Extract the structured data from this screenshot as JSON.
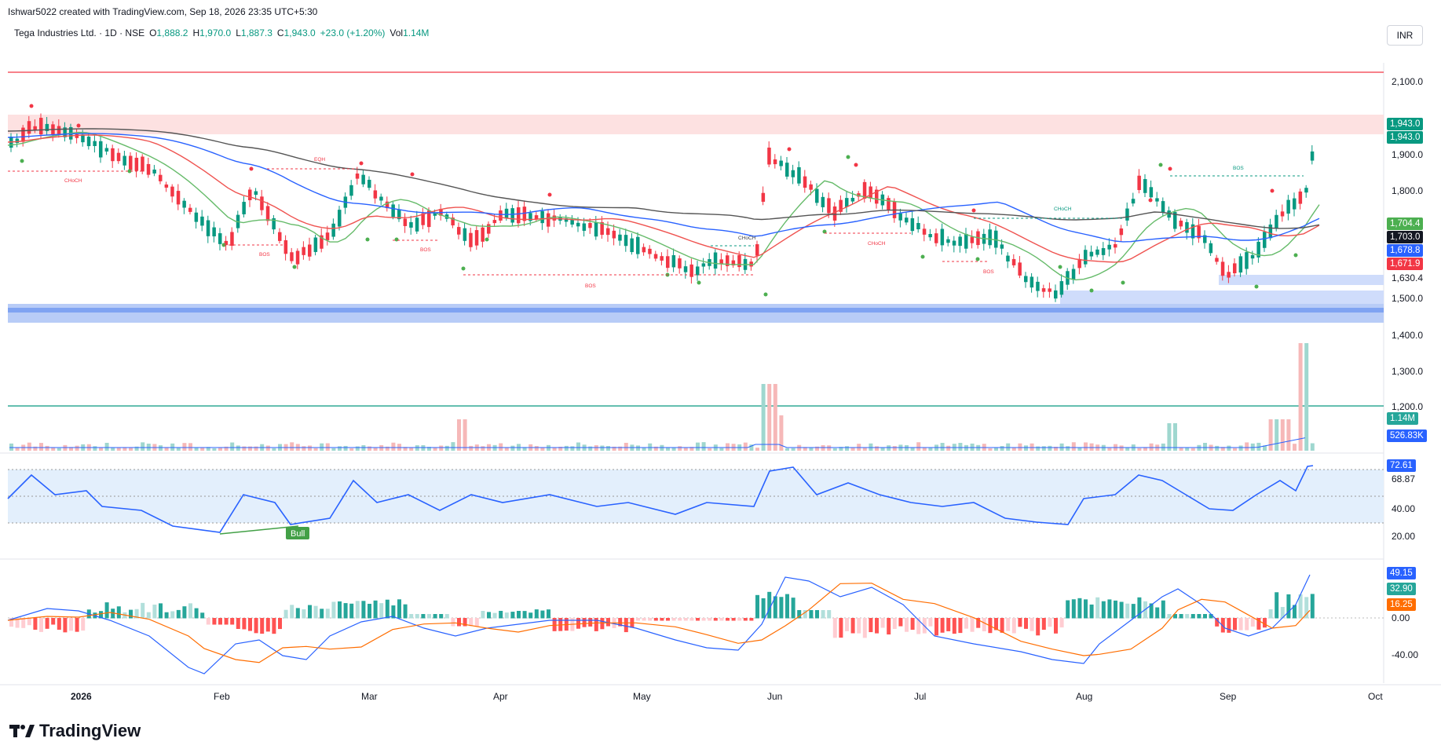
{
  "header": {
    "created_line": "Ishwar5022 created with TradingView.com, Sep 18, 2026 23:35 UTC+5:30",
    "symbol_name": "Tega Industries Ltd. · 1D · NSE",
    "open_label": "O",
    "open_value": "1,888.2",
    "high_label": "H",
    "high_value": "1,970.0",
    "low_label": "L",
    "low_value": "1,887.3",
    "close_label": "C",
    "close_value": "1,943.0",
    "change": "+23.0 (+1.20%)",
    "vol_label": "Vol",
    "vol_value": "1.14M",
    "currency_button": "INR"
  },
  "price_axis": {
    "labels": [
      "2,100.0",
      "1,900.0",
      "1,800.0",
      "1,630.4",
      "1,500.0",
      "1,400.0",
      "1,300.0",
      "1,200.0"
    ],
    "tags": [
      {
        "text": "1,943.0",
        "color": "#089981"
      },
      {
        "text": "1,943.0",
        "color": "#089981"
      },
      {
        "text": "1,704.4",
        "color": "#4caf50"
      },
      {
        "text": "1,703.0",
        "color": "#131722"
      },
      {
        "text": "1,678.8",
        "color": "#2962ff"
      },
      {
        "text": "1,671.9",
        "color": "#f23645"
      }
    ]
  },
  "volume_axis": {
    "tags": [
      {
        "text": "1.14M",
        "color": "#26a69a"
      },
      {
        "text": "526.83K",
        "color": "#2962ff"
      }
    ]
  },
  "rsi_axis": {
    "labels": [
      "68.87",
      "40.00",
      "20.00"
    ],
    "tag": {
      "text": "72.61",
      "color": "#2962ff"
    }
  },
  "macd_axis": {
    "labels": [
      "0.00",
      "-40.00"
    ],
    "tags": [
      {
        "text": "49.15",
        "color": "#2962ff"
      },
      {
        "text": "32.90",
        "color": "#26a69a"
      },
      {
        "text": "16.25",
        "color": "#ff6d00"
      }
    ]
  },
  "time_axis": {
    "labels": [
      "2026",
      "Feb",
      "Mar",
      "Apr",
      "May",
      "Jun",
      "Jul",
      "Aug",
      "Sep",
      "Oct"
    ]
  },
  "annotations": {
    "eqh": "EQH",
    "bos": "BOS",
    "choch": "CHoCH",
    "bull": "Bull"
  },
  "footer": {
    "brand": "TradingView"
  },
  "colors": {
    "up": "#089981",
    "down": "#f23645",
    "ema_green": "#66bb6a",
    "ema_red": "#ef5350",
    "ema_blue": "#2962ff",
    "ema_gray": "#555555",
    "rsi": "#2962ff",
    "macd": "#2962ff",
    "signal": "#ff6d00"
  }
}
